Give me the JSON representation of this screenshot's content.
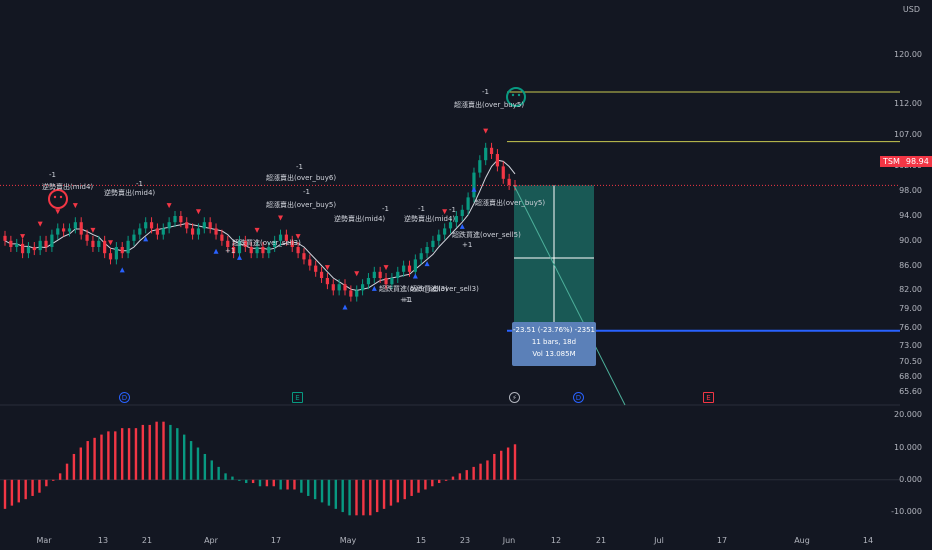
{
  "currency": "USD",
  "ticker_badge": {
    "symbol": "TSM",
    "price": "98.94"
  },
  "price_axis": [
    "120.00",
    "112.00",
    "107.00",
    "102.00",
    "98.00",
    "94.00",
    "90.00",
    "86.00",
    "82.00",
    "79.00",
    "76.00",
    "73.00",
    "70.50",
    "68.00",
    "65.60"
  ],
  "osc_axis": [
    "20.000",
    "10.000",
    "0.000",
    "-10.000"
  ],
  "x_axis": [
    "Mar",
    "13",
    "21",
    "Apr",
    "17",
    "May",
    "15",
    "23",
    "Jun",
    "12",
    "21",
    "Jul",
    "17",
    "Aug",
    "14"
  ],
  "measure": {
    "line1": "-23.51 (-23.76%) -2351",
    "line2": "11 bars, 18d",
    "line3": "Vol 13.085M"
  },
  "events": [
    {
      "kind": "D",
      "label": "D"
    },
    {
      "kind": "E",
      "label": "E"
    },
    {
      "kind": "S",
      "label": "⚡"
    },
    {
      "kind": "D",
      "label": "D"
    },
    {
      "kind": "E",
      "label": "E"
    }
  ],
  "annotations": [
    "-1",
    "超漲賣出(over_buy5)",
    "-1",
    "超漲賣出(over_buy6)",
    "-1",
    "超漲賣出(over_buy5)",
    "-1",
    "逆勢賣出(mid4)",
    "-1",
    "逆勢賣出(mid4)",
    "超跌買進(over_sell3)",
    "+1",
    "超跌買進(over_sell5)",
    "+1",
    "超跌買進(over_sell3)",
    "+1",
    "超跌買進(over_sell3)",
    "+1",
    "-1",
    "超漲賣出(over_buy5)",
    "-1",
    "逆勢賣出(mid4)",
    "-1",
    "逆勢賣出(mid4)"
  ],
  "colors": {
    "up": "#089981",
    "down": "#f23645",
    "bg": "#131722",
    "band": "#c8c850",
    "box": "#22ab94",
    "target": "#2962ff"
  },
  "chart_data": {
    "type": "candlestick",
    "title": "",
    "close": [
      90,
      89,
      89.5,
      88,
      89,
      88.5,
      90,
      89,
      91,
      92,
      91.5,
      92,
      93,
      91,
      90,
      89,
      90,
      88,
      87,
      89,
      88,
      90,
      91,
      92,
      93,
      92,
      91,
      92,
      93,
      94,
      93,
      92,
      91,
      92,
      93,
      92,
      91,
      90,
      89,
      88,
      90,
      89,
      88,
      89,
      88,
      89,
      90,
      91,
      90,
      89,
      88,
      87,
      86,
      85,
      84,
      83,
      82,
      83,
      82,
      81,
      82,
      83,
      84,
      85,
      84,
      83,
      84,
      85,
      86,
      85,
      87,
      88,
      89,
      90,
      91,
      92,
      93,
      94,
      95,
      97,
      101,
      103,
      105,
      104,
      102,
      100,
      99,
      98.94
    ],
    "levels": {
      "upper_band_1": 114,
      "upper_band_2": 106,
      "entry": 98.94,
      "target": 75.5
    },
    "oscillator": {
      "type": "bar",
      "values": [
        -9,
        -8,
        -7,
        -6,
        -5,
        -4,
        -2,
        0,
        2,
        5,
        8,
        10,
        12,
        13,
        14,
        15,
        15,
        16,
        16,
        16,
        17,
        17,
        18,
        18,
        17,
        16,
        14,
        12,
        10,
        8,
        6,
        4,
        2,
        1,
        0,
        -1,
        -1,
        -2,
        -2,
        -2,
        -3,
        -3,
        -3,
        -4,
        -5,
        -6,
        -7,
        -8,
        -9,
        -10,
        -11,
        -11,
        -11,
        -11,
        -10,
        -9,
        -8,
        -7,
        -6,
        -5,
        -4,
        -3,
        -2,
        -1,
        0,
        1,
        2,
        3,
        4,
        5,
        6,
        8,
        9,
        10,
        11
      ]
    },
    "ylim": [
      64,
      124
    ],
    "osc_ylim": [
      -14,
      21
    ]
  }
}
